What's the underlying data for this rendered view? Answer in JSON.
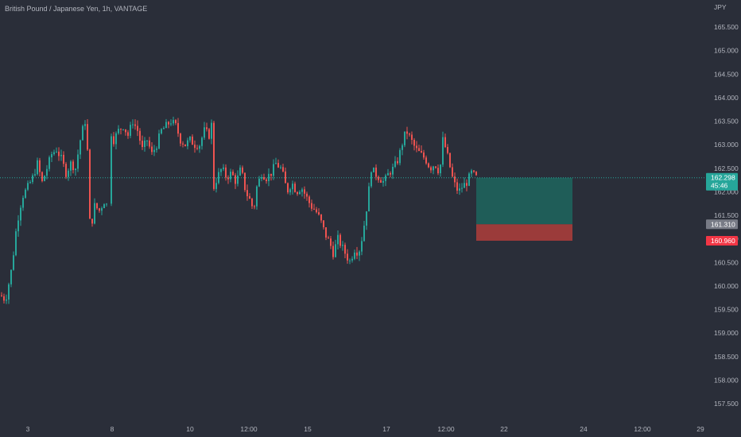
{
  "symbol_title": "British Pound / Japanese Yen, 1h, VANTAGE",
  "currency": "JPY",
  "colors": {
    "background": "#2a2e39",
    "bull": "#26a69a",
    "bear": "#ef5350",
    "profit_zone": "#1f5d58",
    "loss_zone": "#9b3b3a",
    "price_line": "#26a69a",
    "entry_tag": "#787b86",
    "stop_tag": "#f23645"
  },
  "price_tags": {
    "current_price": "162.298",
    "countdown": "45:46",
    "entry": "161.310",
    "stop": "160.960"
  },
  "chart_data": {
    "type": "candlestick",
    "title": "British Pound / Japanese Yen, 1h, VANTAGE",
    "y_axis_label": "JPY",
    "y_ticks": [
      "165.500",
      "165.000",
      "164.500",
      "164.000",
      "163.500",
      "163.000",
      "162.500",
      "162.000",
      "161.500",
      "161.000",
      "160.500",
      "160.000",
      "159.500",
      "159.000",
      "158.500",
      "158.000",
      "157.500"
    ],
    "x_ticks": [
      "3",
      "8",
      "10",
      "12:00",
      "15",
      "17",
      "12:00",
      "22",
      "24",
      "12:00",
      "29"
    ],
    "ylim": [
      157.35,
      165.85
    ],
    "current_price": 162.298,
    "price_path": [
      [
        0,
        159.8
      ],
      [
        6,
        159.7
      ],
      [
        14,
        160.4
      ],
      [
        20,
        161.3
      ],
      [
        27,
        161.9
      ],
      [
        34,
        162.1
      ],
      [
        40,
        162.3
      ],
      [
        46,
        162.6
      ],
      [
        52,
        162.2
      ],
      [
        58,
        162.5
      ],
      [
        64,
        162.8
      ],
      [
        70,
        162.9
      ],
      [
        76,
        162.7
      ],
      [
        82,
        162.4
      ],
      [
        88,
        162.6
      ],
      [
        94,
        162.5
      ],
      [
        100,
        163.1
      ],
      [
        104,
        163.4
      ],
      [
        108,
        163.6
      ],
      [
        111,
        161.4
      ],
      [
        114,
        161.3
      ],
      [
        118,
        161.7
      ],
      [
        124,
        161.6
      ],
      [
        130,
        161.8
      ],
      [
        134,
        161.7
      ],
      [
        138,
        163.3
      ],
      [
        142,
        163.1
      ],
      [
        148,
        163.3
      ],
      [
        154,
        163.4
      ],
      [
        160,
        163.2
      ],
      [
        166,
        163.5
      ],
      [
        172,
        163.3
      ],
      [
        178,
        162.9
      ],
      [
        184,
        163.1
      ],
      [
        190,
        162.8
      ],
      [
        196,
        163.0
      ],
      [
        202,
        163.3
      ],
      [
        208,
        163.4
      ],
      [
        214,
        163.5
      ],
      [
        220,
        163.4
      ],
      [
        226,
        163.1
      ],
      [
        232,
        163.0
      ],
      [
        238,
        163.1
      ],
      [
        244,
        163.0
      ],
      [
        250,
        163.0
      ],
      [
        256,
        163.3
      ],
      [
        262,
        163.2
      ],
      [
        266,
        163.5
      ],
      [
        268,
        162.1
      ],
      [
        272,
        162.3
      ],
      [
        278,
        162.5
      ],
      [
        284,
        162.3
      ],
      [
        290,
        162.4
      ],
      [
        296,
        162.2
      ],
      [
        302,
        162.5
      ],
      [
        308,
        162.0
      ],
      [
        314,
        161.8
      ],
      [
        318,
        161.6
      ],
      [
        322,
        162.1
      ],
      [
        328,
        162.4
      ],
      [
        334,
        162.3
      ],
      [
        340,
        162.4
      ],
      [
        346,
        162.6
      ],
      [
        352,
        162.5
      ],
      [
        356,
        162.3
      ],
      [
        360,
        162.0
      ],
      [
        366,
        162.2
      ],
      [
        372,
        162.0
      ],
      [
        378,
        162.1
      ],
      [
        384,
        161.9
      ],
      [
        390,
        161.7
      ],
      [
        396,
        161.6
      ],
      [
        402,
        161.4
      ],
      [
        408,
        161.1
      ],
      [
        414,
        160.9
      ],
      [
        418,
        160.7
      ],
      [
        424,
        161.0
      ],
      [
        430,
        160.8
      ],
      [
        436,
        160.6
      ],
      [
        440,
        160.5
      ],
      [
        444,
        160.8
      ],
      [
        450,
        160.7
      ],
      [
        454,
        161.0
      ],
      [
        458,
        161.4
      ],
      [
        462,
        161.9
      ],
      [
        466,
        162.5
      ],
      [
        470,
        162.4
      ],
      [
        476,
        162.3
      ],
      [
        482,
        162.2
      ],
      [
        488,
        162.4
      ],
      [
        494,
        162.5
      ],
      [
        500,
        162.7
      ],
      [
        506,
        163.1
      ],
      [
        510,
        163.3
      ],
      [
        516,
        163.1
      ],
      [
        522,
        162.9
      ],
      [
        528,
        162.8
      ],
      [
        534,
        162.7
      ],
      [
        540,
        162.5
      ],
      [
        546,
        162.6
      ],
      [
        552,
        162.4
      ],
      [
        556,
        163.1
      ],
      [
        560,
        162.9
      ],
      [
        564,
        162.6
      ],
      [
        568,
        162.3
      ],
      [
        572,
        162.1
      ],
      [
        576,
        162.0
      ],
      [
        580,
        162.1
      ],
      [
        586,
        162.2
      ],
      [
        592,
        162.4
      ],
      [
        598,
        162.3
      ]
    ],
    "position": {
      "type": "long",
      "entry": 161.31,
      "stop_loss": 160.96,
      "take_profit": 162.298
    }
  }
}
